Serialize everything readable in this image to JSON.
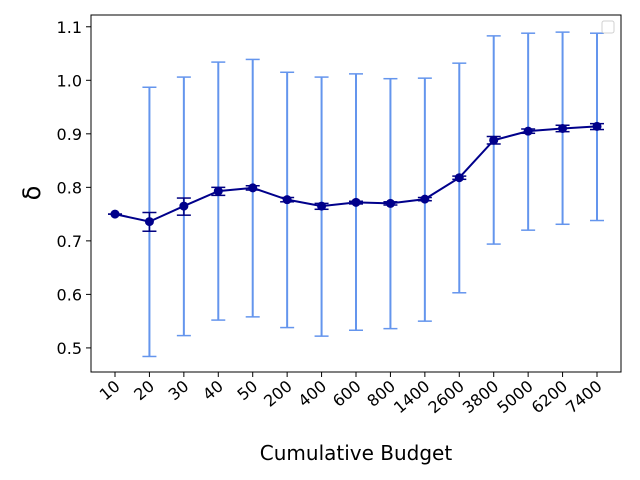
{
  "chart_data": {
    "type": "line",
    "xlabel": "Cumulative Budget",
    "ylabel": "δ",
    "ylim": [
      0.455,
      1.122
    ],
    "yticks": [
      "0.5",
      "0.6",
      "0.7",
      "0.8",
      "0.9",
      "1.0",
      "1.1"
    ],
    "categories": [
      "10",
      "20",
      "30",
      "40",
      "50",
      "200",
      "400",
      "600",
      "800",
      "1400",
      "2600",
      "3800",
      "5000",
      "6200",
      "7400"
    ],
    "series": [
      {
        "values": [
          0.75,
          0.736,
          0.765,
          0.793,
          0.799,
          0.777,
          0.765,
          0.772,
          0.77,
          0.778,
          0.818,
          0.888,
          0.905,
          0.91,
          0.914
        ],
        "sem_low": [
          0.75,
          0.718,
          0.748,
          0.785,
          0.795,
          0.773,
          0.759,
          0.769,
          0.767,
          0.775,
          0.815,
          0.881,
          0.901,
          0.904,
          0.908
        ],
        "sem_high": [
          0.75,
          0.753,
          0.78,
          0.8,
          0.803,
          0.781,
          0.77,
          0.774,
          0.773,
          0.781,
          0.821,
          0.895,
          0.909,
          0.916,
          0.919
        ],
        "range_low": [
          0.75,
          0.484,
          0.523,
          0.552,
          0.558,
          0.538,
          0.522,
          0.533,
          0.536,
          0.55,
          0.603,
          0.694,
          0.72,
          0.731,
          0.738
        ],
        "range_high": [
          0.75,
          0.987,
          1.006,
          1.034,
          1.039,
          1.015,
          1.006,
          1.012,
          1.003,
          1.004,
          1.032,
          1.083,
          1.088,
          1.09,
          1.088
        ]
      }
    ],
    "grid": false,
    "legend": "top-right",
    "colors": {
      "line": "#00008b",
      "errorbar": "#6495ed",
      "sem": "#000080"
    }
  }
}
